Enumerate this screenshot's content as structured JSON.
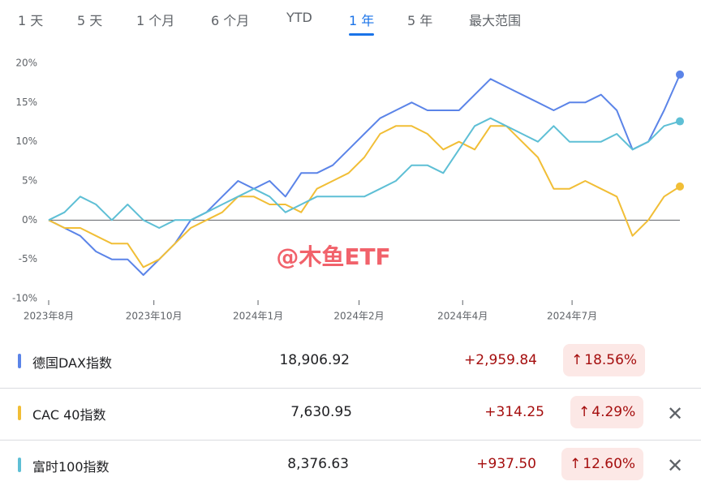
{
  "tabs": [
    "1 天",
    "5 天",
    "1 个月",
    "6 个月",
    "YTD",
    "1 年",
    "5 年",
    "最大范围"
  ],
  "selected_tab": 5,
  "watermark": "@木鱼ETF",
  "chart_data": {
    "type": "line",
    "x": [
      0,
      0.3,
      0.6,
      0.9,
      1.2,
      1.5,
      1.8,
      2.1,
      2.4,
      2.7,
      3.0,
      3.3,
      3.6,
      3.9,
      4.2,
      4.5,
      4.8,
      5.1,
      5.4,
      5.7,
      6.0,
      6.3,
      6.6,
      6.9,
      7.2,
      7.5,
      7.8,
      8.1,
      8.4,
      8.7,
      9.0,
      9.3,
      9.6,
      9.9,
      10.2,
      10.5,
      10.8,
      11.1,
      11.4,
      11.7,
      12
    ],
    "xlim": [
      0,
      12
    ],
    "xticks": [
      {
        "value": 0,
        "label": "2023年8月"
      },
      {
        "value": 2.0,
        "label": "2023年10月"
      },
      {
        "value": 3.98,
        "label": "2024年1月"
      },
      {
        "value": 5.9,
        "label": "2024年2月"
      },
      {
        "value": 7.87,
        "label": "2024年4月"
      },
      {
        "value": 9.95,
        "label": "2024年7月"
      }
    ],
    "ylim": [
      -10,
      20
    ],
    "yticks": [
      {
        "value": -10,
        "label": "-10%"
      },
      {
        "value": -5,
        "label": "-5%"
      },
      {
        "value": 0,
        "label": "0%"
      },
      {
        "value": 5,
        "label": "5%"
      },
      {
        "value": 10,
        "label": "10%"
      },
      {
        "value": 15,
        "label": "15%"
      },
      {
        "value": 20,
        "label": "20%"
      }
    ],
    "series": [
      {
        "name": "德国DAX指数",
        "color": "#5b84e8",
        "values": [
          0,
          -1,
          -2,
          -4,
          -5,
          -5,
          -7,
          -5,
          -3,
          0,
          1,
          3,
          5,
          4,
          5,
          3,
          6,
          6,
          7,
          9,
          11,
          13,
          14,
          15,
          14,
          14,
          14,
          16,
          18,
          17,
          16,
          15,
          14,
          15,
          15,
          16,
          14,
          9,
          10,
          14,
          18.56
        ]
      },
      {
        "name": "CAC 40指数",
        "color": "#f1be36",
        "values": [
          0,
          -1,
          -1,
          -2,
          -3,
          -3,
          -6,
          -5,
          -3,
          -1,
          0,
          1,
          3,
          3,
          2,
          2,
          1,
          4,
          5,
          6,
          8,
          11,
          12,
          12,
          11,
          9,
          10,
          9,
          12,
          12,
          10,
          8,
          4,
          4,
          5,
          4,
          3,
          -2,
          0,
          3,
          4.29
        ]
      },
      {
        "name": "富时100指数",
        "color": "#5ebfd5",
        "values": [
          0,
          1,
          3,
          2,
          0,
          2,
          0,
          -1,
          0,
          0,
          1,
          2,
          3,
          4,
          3,
          1,
          2,
          3,
          3,
          3,
          3,
          4,
          5,
          7,
          7,
          6,
          9,
          12,
          13,
          12,
          11,
          10,
          12,
          10,
          10,
          10,
          11,
          9,
          10,
          12,
          12.6
        ]
      }
    ]
  },
  "table": {
    "rows": [
      {
        "price": "18,906.92",
        "change": "+2,959.84",
        "percent": "18.56%"
      },
      {
        "price": "7,630.95",
        "change": "+314.25",
        "percent": "4.29%"
      },
      {
        "price": "8,376.63",
        "change": "+937.50",
        "percent": "12.60%"
      }
    ]
  }
}
